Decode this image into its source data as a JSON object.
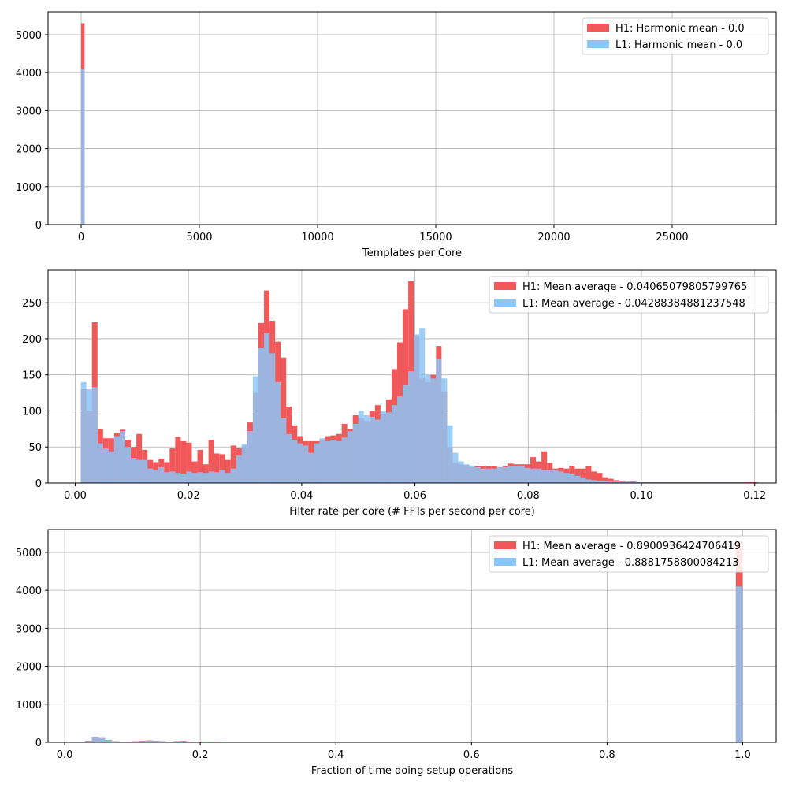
{
  "colors": {
    "h1": "#f0585a",
    "l1": "#8cc6f7",
    "overlap": "#8888c4",
    "grid": "#b0b0b0"
  },
  "chart_data": [
    {
      "type": "bar",
      "xlabel": "Templates per Core",
      "ylabel": "",
      "xlim": [
        -1400,
        29400
      ],
      "ylim": [
        0,
        5600
      ],
      "xticks": [
        0,
        5000,
        10000,
        15000,
        20000,
        25000
      ],
      "xtick_labels": [
        "0",
        "5000",
        "10000",
        "15000",
        "20000",
        "25000"
      ],
      "yticks": [
        0,
        1000,
        2000,
        3000,
        4000,
        5000
      ],
      "ytick_labels": [
        "0",
        "1000",
        "2000",
        "3000",
        "4000",
        "5000"
      ],
      "grid": true,
      "legend_position": "top-right",
      "bin_width": 145,
      "series": [
        {
          "name": "H1: Harmonic mean  - 0.0",
          "color": "h1",
          "x": [
            0,
            3200,
            6500,
            7000,
            7900,
            8800,
            9600,
            10500,
            11500,
            12500,
            13500,
            14500
          ],
          "values": [
            5300,
            8,
            10,
            10,
            8,
            8,
            8,
            6,
            6,
            6,
            6,
            4
          ]
        },
        {
          "name": "L1: Harmonic mean  - 0.0",
          "color": "l1",
          "x": [
            0,
            8000,
            9000,
            10000,
            11000,
            12000,
            13000,
            14000
          ],
          "values": [
            4100,
            6,
            6,
            6,
            6,
            6,
            6,
            4
          ]
        }
      ]
    },
    {
      "type": "bar",
      "xlabel": "Filter rate per core (# FFTs per second per core)",
      "ylabel": "",
      "xlim": [
        -0.0048,
        0.1238
      ],
      "ylim": [
        0,
        295
      ],
      "xticks": [
        0.0,
        0.02,
        0.04,
        0.06,
        0.08,
        0.1,
        0.12
      ],
      "xtick_labels": [
        "0.00",
        "0.02",
        "0.04",
        "0.06",
        "0.08",
        "0.10",
        "0.12"
      ],
      "yticks": [
        0,
        50,
        100,
        150,
        200,
        250
      ],
      "ytick_labels": [
        "0",
        "50",
        "100",
        "150",
        "200",
        "250"
      ],
      "grid": true,
      "legend_position": "top-right",
      "bin_start": 0.001,
      "bin_width": 0.00098,
      "series": [
        {
          "name": "H1: Mean average - 0.04065079805799765",
          "color": "h1",
          "values": [
            130,
            100,
            223,
            75,
            62,
            62,
            70,
            74,
            60,
            50,
            68,
            46,
            32,
            29,
            34,
            29,
            48,
            64,
            58,
            56,
            30,
            46,
            26,
            60,
            41,
            40,
            32,
            52,
            48,
            52,
            84,
            125,
            222,
            267,
            225,
            196,
            174,
            106,
            80,
            65,
            58,
            58,
            58,
            60,
            65,
            66,
            68,
            82,
            75,
            94,
            90,
            86,
            100,
            108,
            96,
            116,
            158,
            195,
            241,
            280,
            204,
            145,
            140,
            150,
            190,
            127,
            50,
            28,
            26,
            25,
            22,
            24,
            24,
            23,
            23,
            22,
            24,
            27,
            26,
            26,
            26,
            36,
            30,
            44,
            28,
            20,
            21,
            20,
            24,
            20,
            20,
            23,
            16,
            14,
            8,
            6,
            4,
            3,
            2,
            2,
            1,
            1,
            1,
            1,
            1,
            1,
            1,
            1,
            1,
            1,
            1,
            1,
            1,
            1,
            1,
            1,
            1,
            1,
            1,
            1,
            1,
            1
          ]
        },
        {
          "name": "L1: Mean average - 0.04288384881237548",
          "color": "l1",
          "values": [
            140,
            130,
            133,
            55,
            48,
            44,
            65,
            72,
            50,
            35,
            32,
            32,
            20,
            18,
            22,
            15,
            16,
            14,
            12,
            16,
            14,
            15,
            14,
            16,
            15,
            18,
            14,
            20,
            38,
            54,
            72,
            148,
            188,
            208,
            180,
            140,
            90,
            68,
            60,
            55,
            52,
            42,
            55,
            62,
            58,
            60,
            58,
            63,
            72,
            82,
            100,
            94,
            92,
            88,
            100,
            98,
            108,
            120,
            136,
            155,
            206,
            215,
            150,
            145,
            172,
            145,
            80,
            42,
            30,
            26,
            24,
            22,
            20,
            20,
            20,
            22,
            22,
            23,
            24,
            24,
            21,
            20,
            20,
            18,
            18,
            18,
            16,
            14,
            12,
            10,
            8,
            5,
            4,
            3,
            3,
            2,
            2,
            2,
            2,
            1,
            1,
            1,
            1,
            1,
            1,
            1,
            1,
            1,
            1,
            1,
            1,
            1,
            1,
            1,
            1,
            1,
            1,
            1,
            1,
            1
          ]
        }
      ]
    },
    {
      "type": "bar",
      "xlabel": "Fraction of time doing setup operations",
      "ylabel": "",
      "xlim": [
        -0.0245,
        1.0495
      ],
      "ylim": [
        0,
        5600
      ],
      "xticks": [
        0.0,
        0.2,
        0.4,
        0.6,
        0.8,
        1.0
      ],
      "xtick_labels": [
        "0.0",
        "0.2",
        "0.4",
        "0.6",
        "0.8",
        "1.0"
      ],
      "yticks": [
        0,
        1000,
        2000,
        3000,
        4000,
        5000
      ],
      "ytick_labels": [
        "0",
        "1000",
        "2000",
        "3000",
        "4000",
        "5000"
      ],
      "grid": true,
      "legend_position": "top-right",
      "bin_width": 0.0098,
      "series": [
        {
          "name": "H1: Mean average - 0.8900936424706419",
          "color": "h1",
          "x": [
            0.03,
            0.04,
            0.05,
            0.06,
            0.07,
            0.08,
            0.09,
            0.1,
            0.11,
            0.12,
            0.13,
            0.14,
            0.15,
            0.16,
            0.17,
            0.18,
            0.19,
            0.2,
            0.21,
            0.22,
            0.23,
            0.24,
            0.99
          ],
          "values": [
            40,
            140,
            130,
            60,
            30,
            20,
            20,
            30,
            40,
            50,
            40,
            30,
            20,
            30,
            40,
            20,
            10,
            20,
            20,
            20,
            15,
            10,
            5300
          ]
        },
        {
          "name": "L1: Mean average - 0.8881758800084213",
          "color": "l1",
          "x": [
            0.03,
            0.04,
            0.05,
            0.06,
            0.07,
            0.08,
            0.09,
            0.1,
            0.11,
            0.12,
            0.13,
            0.14,
            0.15,
            0.16,
            0.17,
            0.18,
            0.19,
            0.2,
            0.99
          ],
          "values": [
            30,
            130,
            120,
            50,
            25,
            18,
            15,
            25,
            30,
            40,
            35,
            25,
            18,
            25,
            30,
            15,
            10,
            12,
            4100
          ]
        }
      ]
    }
  ]
}
